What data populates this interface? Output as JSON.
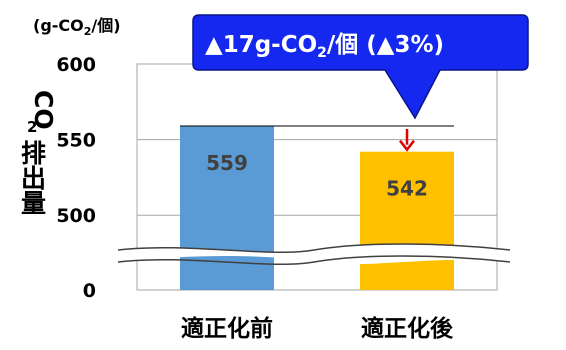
{
  "chart_data": {
    "type": "bar",
    "categories": [
      "適正化前",
      "適正化後"
    ],
    "values": [
      559,
      542
    ],
    "colors": [
      "#5B9BD5",
      "#FFC000"
    ],
    "ylim": [
      0,
      600
    ],
    "axis_break": [
      0,
      475
    ],
    "yticks": [
      0,
      500,
      550,
      600
    ],
    "ylabel": {
      "main": "CO",
      "sub": "2",
      "suffix": "排出量"
    },
    "unit": {
      "pre": "(g-CO",
      "sub": "2",
      "post": "/個)"
    },
    "annotation": {
      "pre": "▲17g-CO",
      "sub": "2",
      "post": "/個 (▲3%)"
    },
    "grid": true,
    "callout_color": "#1428F0",
    "arrow_color": "#E00000"
  }
}
